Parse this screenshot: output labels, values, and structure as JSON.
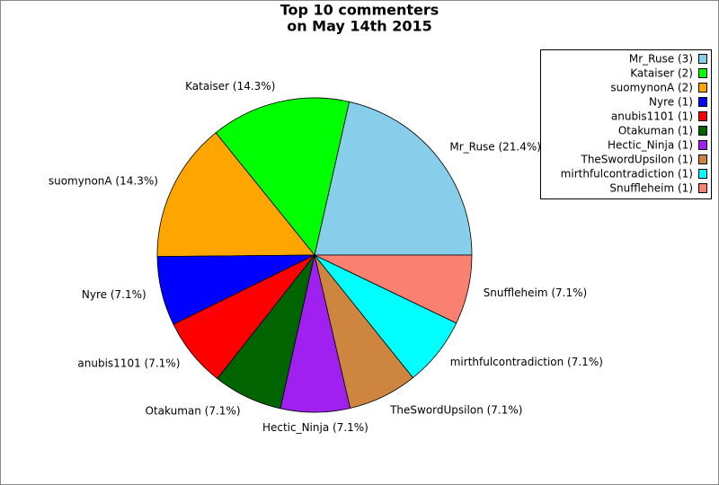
{
  "chart_data": {
    "type": "pie",
    "title": [
      "Top 10 commenters",
      "on May 14th 2015"
    ],
    "values": [
      21.4,
      14.3,
      14.3,
      7.1,
      7.1,
      7.1,
      7.1,
      7.1,
      7.1,
      7.1
    ],
    "value_labels": [
      "Mr_Ruse (21.4%)",
      "Kataiser (14.3%)",
      "suomynonA (14.3%)",
      "Nyre (7.1%)",
      "anubis1101 (7.1%)",
      "Otakuman (7.1%)",
      "Hectic_Ninja (7.1%)",
      "TheSwordUpsilon (7.1%)",
      "mirthfulcontradiction (7.1%)",
      "Snuffleheim (7.1%)"
    ],
    "legend_labels": [
      "Mr_Ruse (3)",
      "Kataiser (2)",
      "suomynonA (2)",
      "Nyre (1)",
      "anubis1101 (1)",
      "Otakuman (1)",
      "Hectic_Ninja (1)",
      "TheSwordUpsilon (1)",
      "mirthfulcontradiction (1)",
      "Snuffleheim (1)"
    ],
    "colors": [
      "#87ceeb",
      "#00ff00",
      "#ffa500",
      "#0000ff",
      "#ff0000",
      "#006400",
      "#a020f0",
      "#cd853f",
      "#00ffff",
      "#fa8072"
    ],
    "legend_position": "upper right"
  }
}
